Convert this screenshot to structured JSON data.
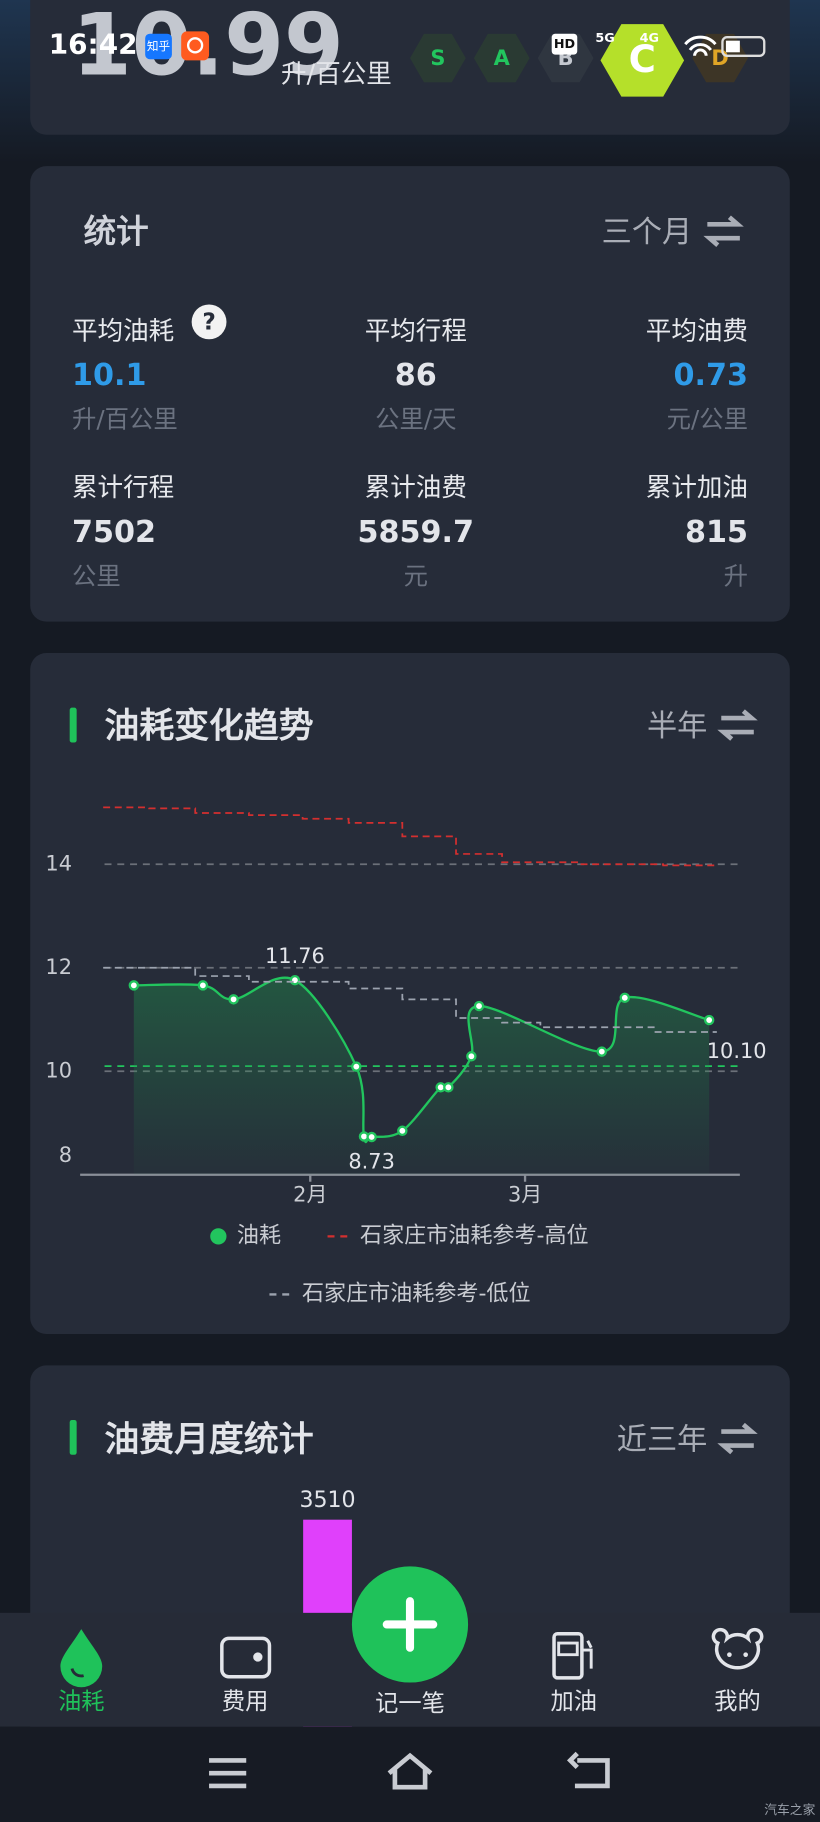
{
  "status_bar": {
    "time": "16:42",
    "app_icon": "知乎",
    "hd": "HD",
    "network": [
      "5G",
      "4G"
    ]
  },
  "header": {
    "value": "10.99",
    "unit": "升/百公里",
    "grades": [
      "S",
      "A",
      "B",
      "C",
      "D"
    ]
  },
  "stats_card": {
    "title": "统计",
    "period": "三个月",
    "help": "?",
    "items": [
      {
        "label": "平均油耗",
        "value": "10.1",
        "unit": "升/百公里"
      },
      {
        "label": "平均行程",
        "value": "86",
        "unit": "公里/天"
      },
      {
        "label": "平均油费",
        "value": "0.73",
        "unit": "元/公里"
      },
      {
        "label": "累计行程",
        "value": "7502",
        "unit": "公里"
      },
      {
        "label": "累计油费",
        "value": "5859.7",
        "unit": "元"
      },
      {
        "label": "累计加油",
        "value": "815",
        "unit": "升"
      }
    ]
  },
  "trend_card": {
    "title": "油耗变化趋势",
    "period": "半年",
    "chart": {
      "type": "line",
      "xlim": [
        2,
        88
      ],
      "xticks": [
        {
          "value": 32,
          "label": "2月"
        },
        {
          "value": 60,
          "label": "3月"
        }
      ],
      "ylim": [
        8,
        15.5
      ],
      "yticks": [
        8,
        10,
        12,
        14
      ],
      "grid": true,
      "series": [
        {
          "name": "油耗",
          "color": "#22c55e",
          "style": "smooth",
          "x": [
            9,
            18,
            22,
            30,
            38,
            39,
            40,
            44,
            49,
            50,
            53,
            54,
            70,
            73,
            84
          ],
          "values": [
            11.66,
            11.66,
            11.39,
            11.76,
            10.09,
            8.74,
            8.73,
            8.85,
            9.69,
            9.69,
            10.29,
            11.26,
            10.38,
            11.42,
            10.99
          ]
        },
        {
          "name": "石家庄市油耗参考-高位",
          "color": "#d32f2f",
          "style": "step",
          "x": [
            5,
            11,
            17,
            24,
            31,
            37,
            44,
            51,
            57,
            67,
            78,
            85
          ],
          "values": [
            15.1,
            15.08,
            14.99,
            14.95,
            14.88,
            14.8,
            14.54,
            14.2,
            14.04,
            14.0,
            13.98,
            13.95
          ]
        },
        {
          "name": "石家庄市油耗参考-低位",
          "color": "#9ca3af",
          "style": "step",
          "x": [
            5,
            17,
            24,
            37,
            44,
            51,
            57,
            62,
            77,
            85
          ],
          "values": [
            12.0,
            11.84,
            11.73,
            11.6,
            11.39,
            11.03,
            10.94,
            10.85,
            10.76,
            10.76
          ]
        }
      ],
      "average": {
        "value": 10.1,
        "label": "10.10",
        "color": "#22c55e"
      }
    }
  },
  "monthly_card": {
    "title": "油费月度统计",
    "period": "近三年",
    "chart": {
      "type": "bar",
      "values": [
        3510
      ],
      "color": "#e040fb",
      "ylim": [
        0,
        4000
      ]
    }
  },
  "bottom_nav": {
    "items": [
      "油耗",
      "费用",
      "记一笔",
      "加油",
      "我的"
    ]
  },
  "watermark": "汽车之家"
}
